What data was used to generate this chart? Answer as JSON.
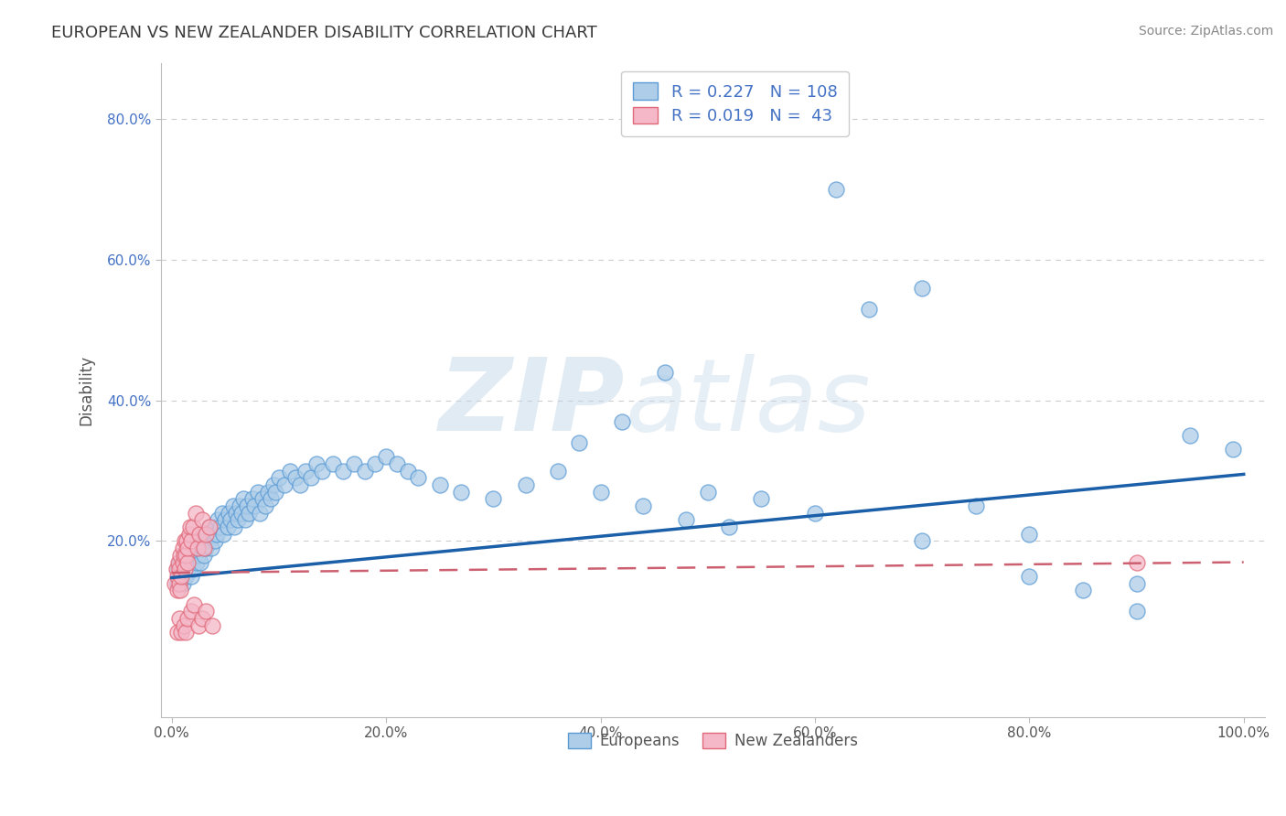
{
  "title": "EUROPEAN VS NEW ZEALANDER DISABILITY CORRELATION CHART",
  "source_text": "Source: ZipAtlas.com",
  "ylabel": "Disability",
  "watermark_zip": "ZIP",
  "watermark_atlas": "atlas",
  "xlim": [
    -0.01,
    1.02
  ],
  "ylim": [
    -0.05,
    0.88
  ],
  "xticks": [
    0.0,
    0.2,
    0.4,
    0.6,
    0.8,
    1.0
  ],
  "xtick_labels": [
    "0.0%",
    "20.0%",
    "40.0%",
    "60.0%",
    "80.0%",
    "100.0%"
  ],
  "yticks": [
    0.2,
    0.4,
    0.6,
    0.8
  ],
  "ytick_labels": [
    "20.0%",
    "40.0%",
    "60.0%",
    "80.0%"
  ],
  "title_color": "#3a3a3a",
  "title_fontsize": 13,
  "grid_color": "#cccccc",
  "european_color": "#aecde8",
  "european_edge_color": "#5b9bd5",
  "nz_color": "#f4b8c8",
  "nz_edge_color": "#e06878",
  "regression_blue_color": "#1a5fa8",
  "regression_pink_color": "#cc6070",
  "legend_R1": "0.227",
  "legend_N1": "108",
  "legend_R2": "0.019",
  "legend_N2": " 43",
  "legend_label1": "Europeans",
  "legend_label2": "New Zealanders",
  "european_x": [
    0.005,
    0.005,
    0.007,
    0.008,
    0.01,
    0.01,
    0.012,
    0.013,
    0.015,
    0.015,
    0.017,
    0.018,
    0.02,
    0.02,
    0.022,
    0.023,
    0.025,
    0.025,
    0.027,
    0.028,
    0.03,
    0.03,
    0.032,
    0.033,
    0.035,
    0.035,
    0.037,
    0.038,
    0.04,
    0.04,
    0.042,
    0.043,
    0.045,
    0.047,
    0.048,
    0.05,
    0.052,
    0.053,
    0.055,
    0.057,
    0.058,
    0.06,
    0.062,
    0.063,
    0.065,
    0.067,
    0.068,
    0.07,
    0.072,
    0.075,
    0.077,
    0.08,
    0.082,
    0.085,
    0.087,
    0.09,
    0.092,
    0.095,
    0.097,
    0.1,
    0.105,
    0.11,
    0.115,
    0.12,
    0.125,
    0.13,
    0.135,
    0.14,
    0.15,
    0.16,
    0.17,
    0.18,
    0.19,
    0.2,
    0.21,
    0.22,
    0.23,
    0.25,
    0.27,
    0.3,
    0.33,
    0.36,
    0.4,
    0.44,
    0.48,
    0.52,
    0.38,
    0.42,
    0.46,
    0.5,
    0.55,
    0.6,
    0.65,
    0.7,
    0.75,
    0.8,
    0.85,
    0.9,
    0.95,
    0.99,
    0.62,
    0.7,
    0.8,
    0.9
  ],
  "european_y": [
    0.16,
    0.14,
    0.17,
    0.15,
    0.16,
    0.14,
    0.17,
    0.15,
    0.18,
    0.16,
    0.17,
    0.15,
    0.18,
    0.16,
    0.19,
    0.17,
    0.18,
    0.2,
    0.17,
    0.19,
    0.18,
    0.2,
    0.19,
    0.21,
    0.2,
    0.22,
    0.19,
    0.21,
    0.2,
    0.22,
    0.21,
    0.23,
    0.22,
    0.24,
    0.21,
    0.23,
    0.22,
    0.24,
    0.23,
    0.25,
    0.22,
    0.24,
    0.23,
    0.25,
    0.24,
    0.26,
    0.23,
    0.25,
    0.24,
    0.26,
    0.25,
    0.27,
    0.24,
    0.26,
    0.25,
    0.27,
    0.26,
    0.28,
    0.27,
    0.29,
    0.28,
    0.3,
    0.29,
    0.28,
    0.3,
    0.29,
    0.31,
    0.3,
    0.31,
    0.3,
    0.31,
    0.3,
    0.31,
    0.32,
    0.31,
    0.3,
    0.29,
    0.28,
    0.27,
    0.26,
    0.28,
    0.3,
    0.27,
    0.25,
    0.23,
    0.22,
    0.34,
    0.37,
    0.44,
    0.27,
    0.26,
    0.24,
    0.53,
    0.56,
    0.25,
    0.21,
    0.13,
    0.14,
    0.35,
    0.33,
    0.7,
    0.2,
    0.15,
    0.1
  ],
  "nz_x": [
    0.003,
    0.004,
    0.005,
    0.005,
    0.006,
    0.007,
    0.007,
    0.008,
    0.008,
    0.009,
    0.01,
    0.01,
    0.011,
    0.012,
    0.012,
    0.013,
    0.014,
    0.015,
    0.015,
    0.016,
    0.017,
    0.018,
    0.02,
    0.022,
    0.024,
    0.026,
    0.028,
    0.03,
    0.032,
    0.035,
    0.005,
    0.007,
    0.009,
    0.011,
    0.013,
    0.015,
    0.018,
    0.021,
    0.025,
    0.028,
    0.032,
    0.038,
    0.9
  ],
  "nz_y": [
    0.14,
    0.16,
    0.13,
    0.15,
    0.17,
    0.14,
    0.16,
    0.18,
    0.13,
    0.15,
    0.17,
    0.19,
    0.18,
    0.2,
    0.16,
    0.18,
    0.2,
    0.17,
    0.19,
    0.21,
    0.22,
    0.2,
    0.22,
    0.24,
    0.19,
    0.21,
    0.23,
    0.19,
    0.21,
    0.22,
    0.07,
    0.09,
    0.07,
    0.08,
    0.07,
    0.09,
    0.1,
    0.11,
    0.08,
    0.09,
    0.1,
    0.08,
    0.17
  ],
  "blue_line_x": [
    0.0,
    1.0
  ],
  "blue_line_y": [
    0.148,
    0.295
  ],
  "pink_line_x": [
    0.0,
    1.0
  ],
  "pink_line_y": [
    0.155,
    0.17
  ]
}
